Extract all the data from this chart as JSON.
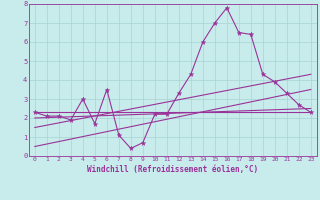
{
  "bg_color": "#c8ecec",
  "grid_color": "#a8d4d4",
  "line_color": "#993399",
  "xlabel": "Windchill (Refroidissement éolien,°C)",
  "xlim": [
    -0.5,
    23.5
  ],
  "ylim": [
    0,
    8
  ],
  "xticks": [
    0,
    1,
    2,
    3,
    4,
    5,
    6,
    7,
    8,
    9,
    10,
    11,
    12,
    13,
    14,
    15,
    16,
    17,
    18,
    19,
    20,
    21,
    22,
    23
  ],
  "yticks": [
    0,
    1,
    2,
    3,
    4,
    5,
    6,
    7,
    8
  ],
  "data_x": [
    0,
    1,
    2,
    3,
    4,
    5,
    6,
    7,
    8,
    9,
    10,
    11,
    12,
    13,
    14,
    15,
    16,
    17,
    18,
    19,
    20,
    21,
    22,
    23
  ],
  "data_y": [
    2.3,
    2.1,
    2.1,
    1.9,
    3.0,
    1.7,
    3.5,
    1.1,
    0.4,
    0.7,
    2.2,
    2.2,
    3.3,
    4.3,
    6.0,
    7.0,
    7.8,
    6.5,
    6.4,
    4.3,
    3.9,
    3.3,
    2.7,
    2.3
  ],
  "line1_x": [
    0,
    23
  ],
  "line1_y": [
    2.3,
    2.3
  ],
  "line2_x": [
    0,
    23
  ],
  "line2_y": [
    2.0,
    2.5
  ],
  "line3_x": [
    0,
    23
  ],
  "line3_y": [
    1.5,
    4.3
  ],
  "line4_x": [
    0,
    23
  ],
  "line4_y": [
    0.5,
    3.5
  ]
}
